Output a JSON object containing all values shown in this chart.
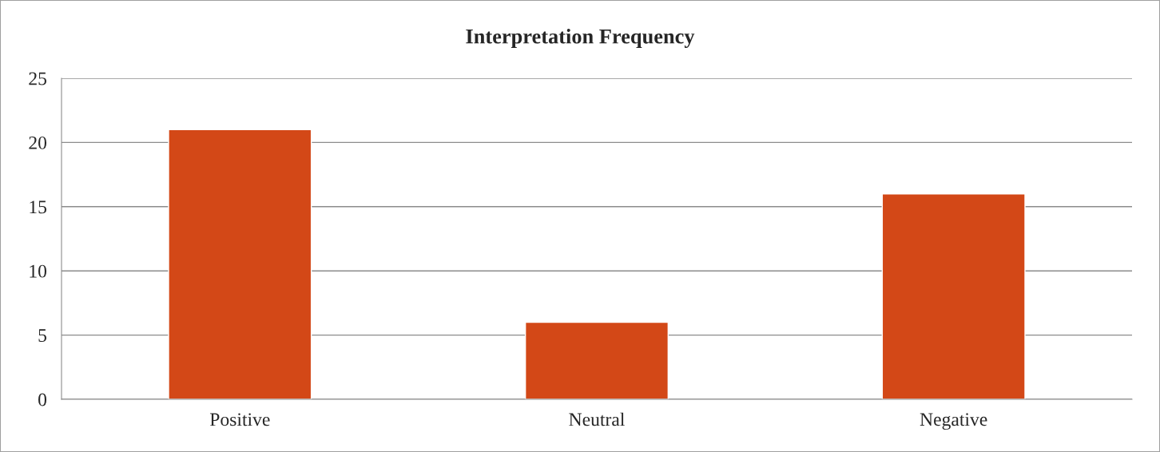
{
  "chart_data": {
    "type": "bar",
    "title": "Interpretation Frequency",
    "categories": [
      "Positive",
      "Neutral",
      "Negative"
    ],
    "values": [
      21,
      6,
      16
    ],
    "color": "#d34817",
    "ylim": [
      0,
      25
    ],
    "yticks": [
      0,
      5,
      10,
      15,
      20,
      25
    ],
    "grid": "y",
    "legend": false
  }
}
